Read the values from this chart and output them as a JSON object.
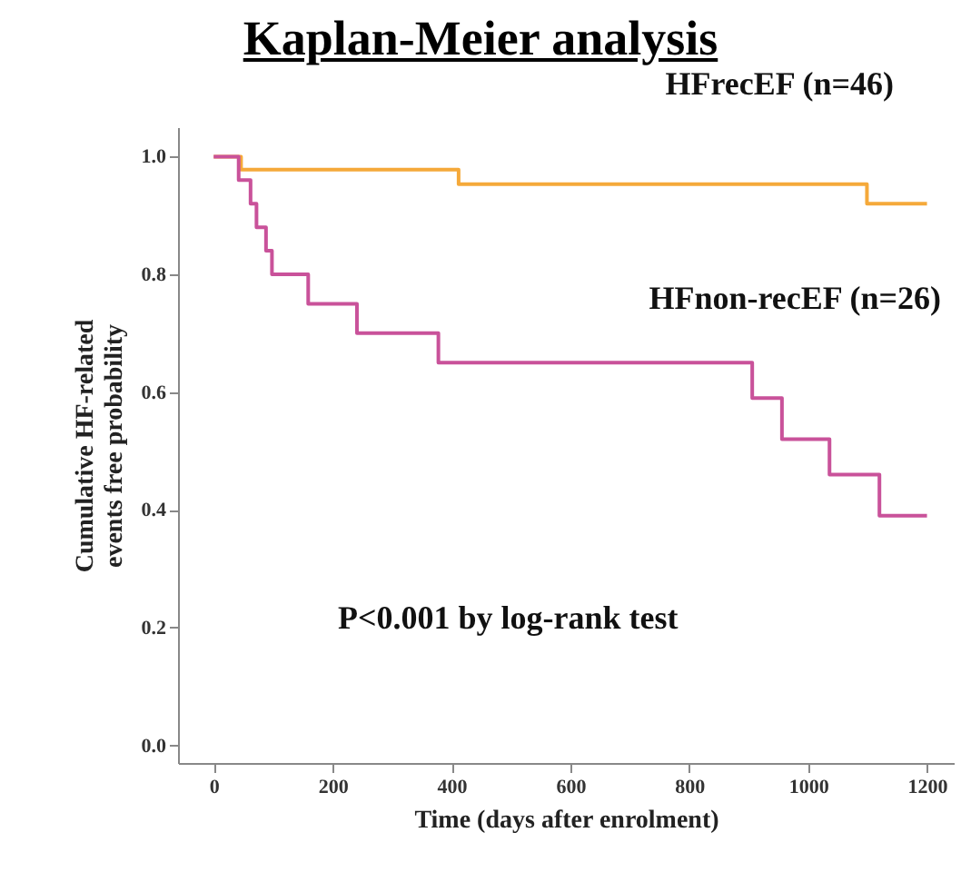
{
  "chart_data": {
    "type": "step",
    "title": "Kaplan-Meier analysis",
    "xlabel": "Time (days after enrolment)",
    "ylabel": "Cumulative HF-related\nevents free probability",
    "series": [
      {
        "name": "HFrecEF (n=46)",
        "color": "#f5a93a",
        "x": [
          0,
          46,
          412,
          1099,
          1200
        ],
        "values": [
          1,
          0.978,
          0.953,
          0.92,
          0.92
        ]
      },
      {
        "name": "HFnon-recEF (n=26)",
        "color": "#c9529a",
        "x": [
          0,
          42,
          62,
          72,
          88,
          98,
          159,
          241,
          378,
          906,
          956,
          1036,
          1120,
          1200
        ],
        "values": [
          1,
          0.96,
          0.92,
          0.88,
          0.84,
          0.8,
          0.75,
          0.7,
          0.65,
          0.59,
          0.52,
          0.46,
          0.39,
          0.39
        ]
      }
    ],
    "annotations": [
      "P<0.001  by log-rank test"
    ],
    "xlim": [
      -60,
      1245
    ],
    "xticks": [
      0,
      200,
      400,
      600,
      800,
      1000,
      1200
    ],
    "ylim": [
      -0.03,
      1.05
    ],
    "yticks": [
      {
        "value": 0,
        "label": "0.0"
      },
      {
        "value": 0.2,
        "label": "0.2"
      },
      {
        "value": 0.4,
        "label": "0.4"
      },
      {
        "value": 0.6,
        "label": "0.6"
      },
      {
        "value": 0.8,
        "label": "0.8"
      },
      {
        "value": 1,
        "label": "1.0"
      }
    ],
    "grid": false
  }
}
